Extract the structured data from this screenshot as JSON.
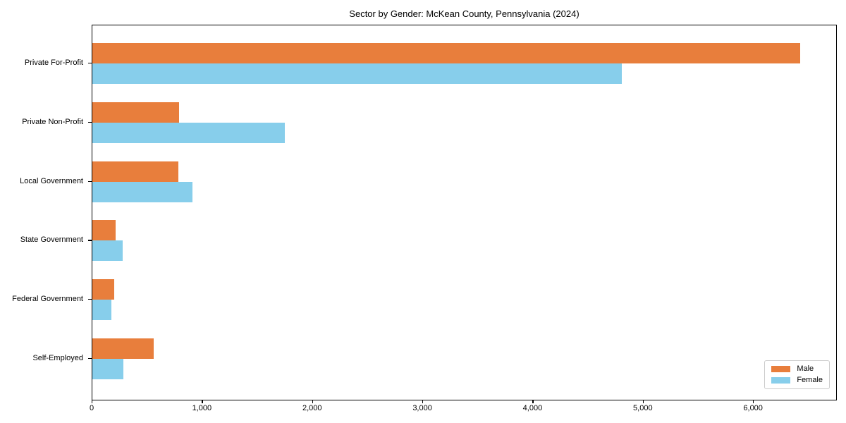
{
  "title": "Sector by Gender: McKean County, Pennsylvania (2024)",
  "colors": {
    "male": "#E87E3C",
    "female": "#87CEEB",
    "axis": "#000000",
    "legend_border": "#CCCCCC",
    "background": "#FFFFFF"
  },
  "legend": {
    "position": "lower right",
    "items": [
      {
        "label": "Male",
        "color": "#E87E3C"
      },
      {
        "label": "Female",
        "color": "#87CEEB"
      }
    ]
  },
  "chart_data": {
    "type": "bar",
    "orientation": "horizontal",
    "title": "Sector by Gender: McKean County, Pennsylvania (2024)",
    "categories": [
      "Private For-Profit",
      "Private Non-Profit",
      "Local Government",
      "State Government",
      "Federal Government",
      "Self-Employed"
    ],
    "series": [
      {
        "name": "Male",
        "color": "#E87E3C",
        "values": [
          6435,
          785,
          780,
          210,
          200,
          555
        ]
      },
      {
        "name": "Female",
        "color": "#87CEEB",
        "values": [
          4810,
          1750,
          910,
          275,
          170,
          280
        ]
      }
    ],
    "xlabel": "",
    "ylabel": "",
    "xlim": [
      0,
      6760
    ],
    "x_ticks": [
      0,
      1000,
      2000,
      3000,
      4000,
      5000,
      6000
    ],
    "x_tick_labels": [
      "0",
      "1,000",
      "2,000",
      "3,000",
      "4,000",
      "5,000",
      "6,000"
    ],
    "grid": false,
    "legend_position": "lower right"
  }
}
